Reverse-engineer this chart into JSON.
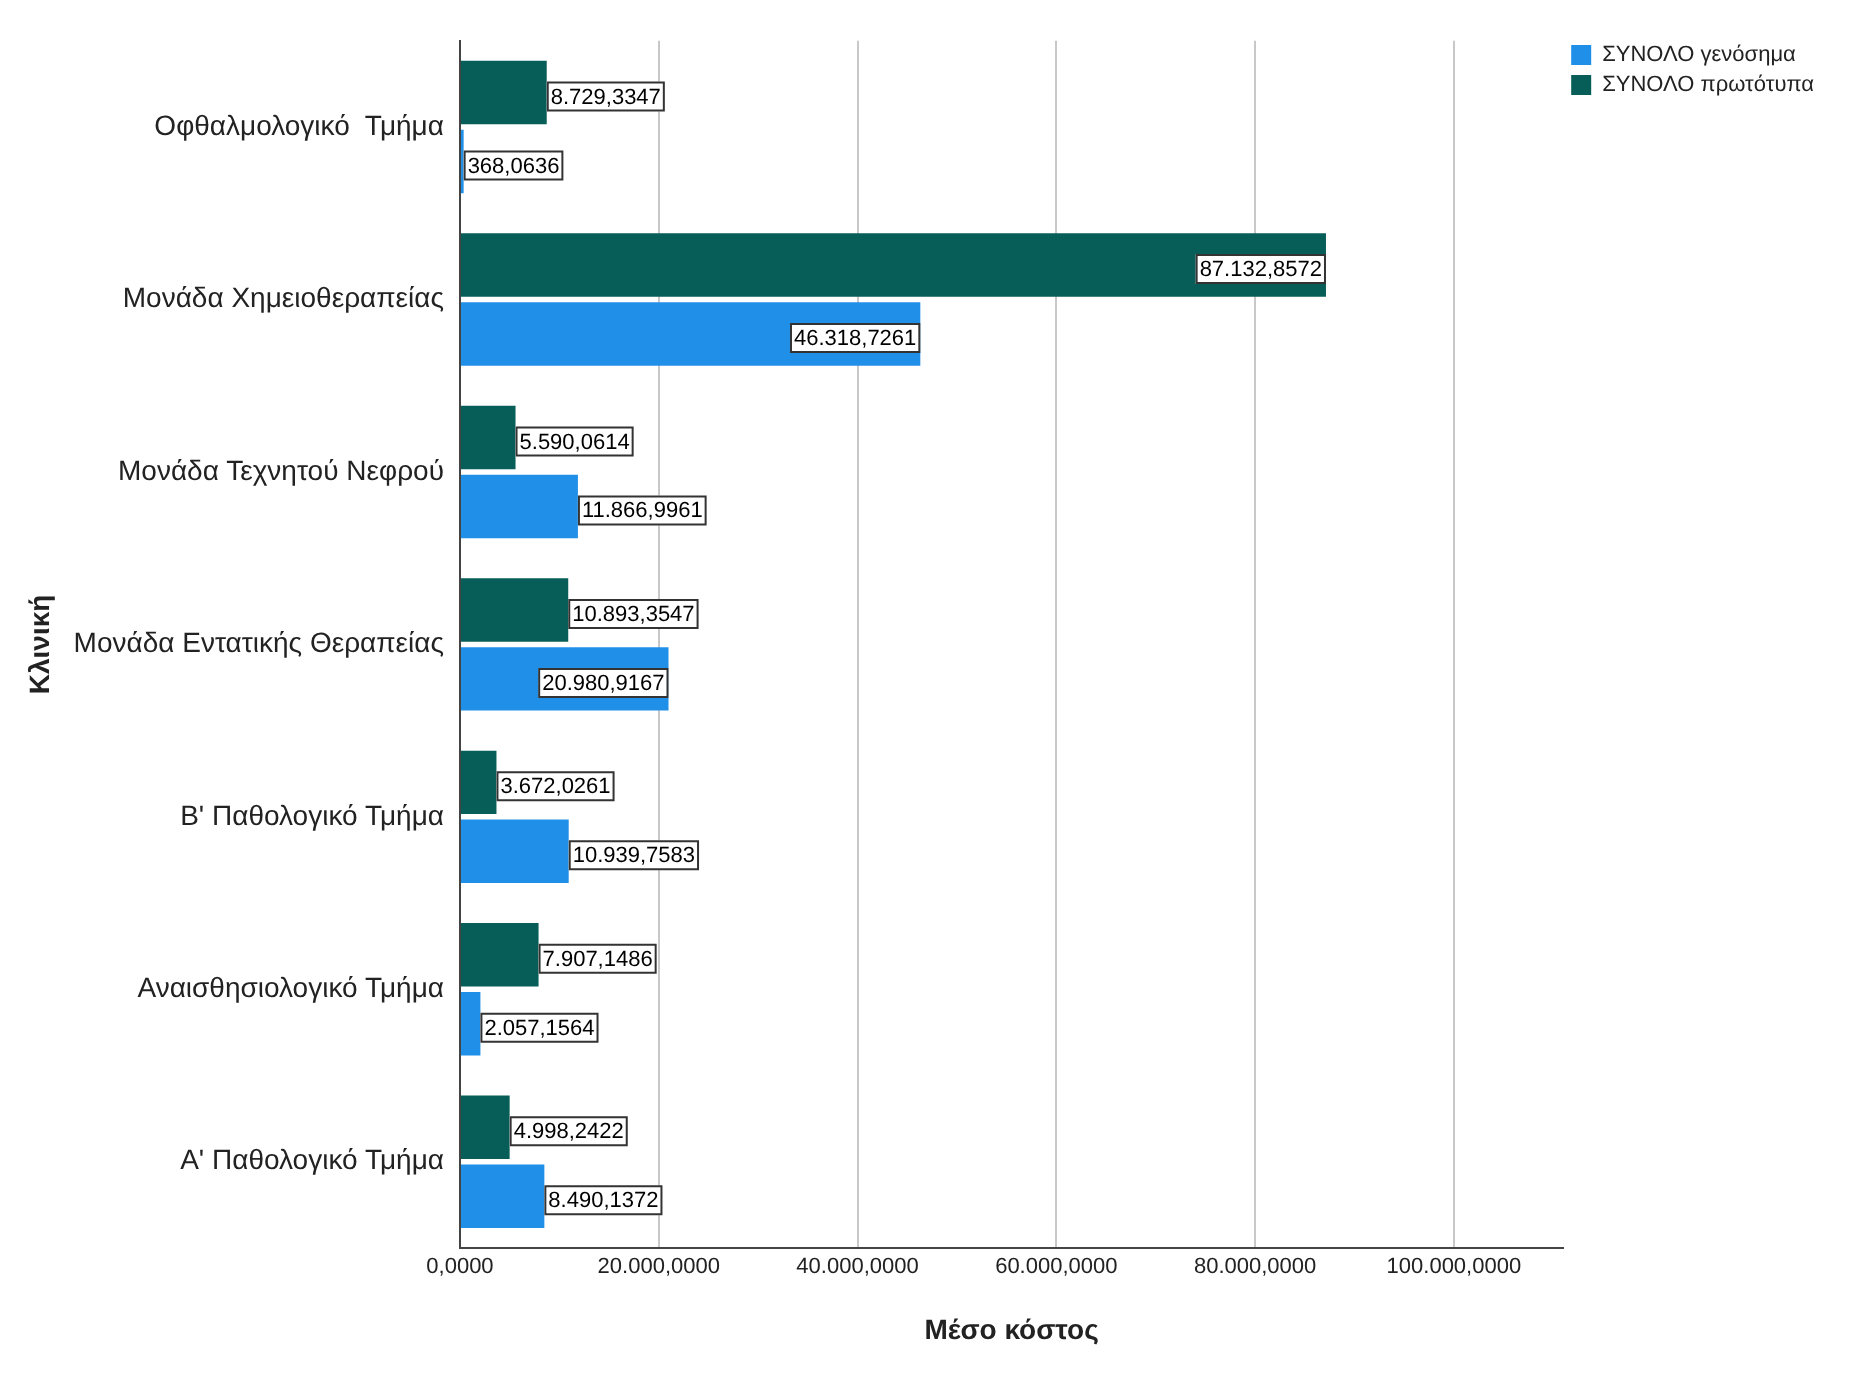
{
  "chart_data": {
    "type": "bar",
    "orientation": "horizontal",
    "xlabel": "Μέσο κόστος",
    "ylabel": "Κλινική",
    "categories": [
      "Οφθαλμολογικό  Τμήμα",
      "Μονάδα Χημειοθεραπείας",
      "Μονάδα Τεχνητού Νεφρού",
      "Μονάδα Εντατικής Θεραπείας",
      "Β' Παθολογικό Τμήμα",
      "Αναισθησιολογικό Τμήμα",
      "Α' Παθολογικό Τμήμα"
    ],
    "series": [
      {
        "name": "ΣΥΝΟΛΟ γενόσημα",
        "color": "#1f8fe8",
        "values": [
          368.0636,
          46318.7261,
          11866.9961,
          20980.9167,
          10939.7583,
          2057.1564,
          8490.1372
        ],
        "value_labels": [
          "368,0636",
          "46.318,7261",
          "11.866,9961",
          "20.980,9167",
          "10.939,7583",
          "2.057,1564",
          "8.490,1372"
        ]
      },
      {
        "name": "ΣΥΝΟΛΟ πρωτότυπα",
        "color": "#075e58",
        "values": [
          8729.3347,
          87132.8572,
          5590.0614,
          10893.3547,
          3672.0261,
          7907.1486,
          4998.2422
        ],
        "value_labels": [
          "8.729,3347",
          "87.132,8572",
          "5.590,0614",
          "10.893,3547",
          "3.672,0261",
          "7.907,1486",
          "4.998,2422"
        ]
      }
    ],
    "xlim": [
      0,
      111000
    ],
    "xticks": [
      {
        "value": 0,
        "label": "0,0000"
      },
      {
        "value": 20000,
        "label": "20.000,0000"
      },
      {
        "value": 40000,
        "label": "40.000,0000"
      },
      {
        "value": 60000,
        "label": "60.000,0000"
      },
      {
        "value": 80000,
        "label": "80.000,0000"
      },
      {
        "value": 100000,
        "label": "100.000,0000"
      }
    ],
    "grid": "x",
    "legend": "top right"
  }
}
